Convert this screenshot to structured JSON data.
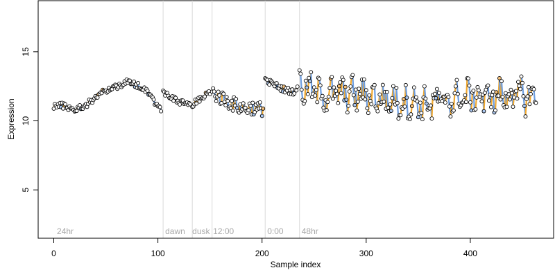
{
  "chart_data": {
    "type": "scatter",
    "title": "",
    "xlabel": "Sample index",
    "ylabel": "Expression",
    "xlim": [
      -15,
      480
    ],
    "ylim": [
      1.5,
      18.7
    ],
    "xticks": [
      0,
      100,
      200,
      300,
      400
    ],
    "yticks": [
      5,
      10,
      15
    ],
    "grid": false,
    "legend": "none",
    "colors": {
      "point_stroke": "#000000",
      "point_fill_default": "#ffffff",
      "point_fill_orange": "#f5c07a",
      "point_fill_blue": "#aac6ee",
      "line_orange": "#f0a830",
      "line_blue": "#6e9ee0",
      "line_gray": "#999999",
      "divider": "#d9d9d9",
      "phase_label": "#a8a8a8"
    },
    "phase_dividers": [
      105,
      133,
      152,
      203,
      236
    ],
    "phase_labels": [
      {
        "x": 3,
        "text": "24hr"
      },
      {
        "x": 107,
        "text": "dawn"
      },
      {
        "x": 133,
        "text": "dusk"
      },
      {
        "x": 153,
        "text": "12:00"
      },
      {
        "x": 205,
        "text": "0:00"
      },
      {
        "x": 238,
        "text": "48hr"
      }
    ],
    "segments": [
      {
        "start": 0,
        "end": 103,
        "keys": [
          [
            0,
            11.1
          ],
          [
            10,
            11.1
          ],
          [
            20,
            10.8
          ],
          [
            30,
            11.1
          ],
          [
            40,
            11.7
          ],
          [
            50,
            12.2
          ],
          [
            60,
            12.5
          ],
          [
            70,
            12.8
          ],
          [
            80,
            12.6
          ],
          [
            90,
            12.2
          ],
          [
            95,
            11.6
          ],
          [
            100,
            11.0
          ],
          [
            103,
            10.9
          ]
        ]
      },
      {
        "start": 105,
        "end": 131,
        "keys": [
          [
            105,
            12.0
          ],
          [
            110,
            11.9
          ],
          [
            115,
            11.6
          ],
          [
            120,
            11.3
          ],
          [
            125,
            11.3
          ],
          [
            131,
            11.2
          ]
        ]
      },
      {
        "start": 133,
        "end": 150,
        "keys": [
          [
            133,
            11.2
          ],
          [
            140,
            11.5
          ],
          [
            145,
            11.8
          ],
          [
            150,
            12.0
          ]
        ]
      },
      {
        "start": 152,
        "end": 201,
        "keys": [
          [
            152,
            12.1
          ],
          [
            160,
            11.7
          ],
          [
            170,
            11.3
          ],
          [
            178,
            11.0
          ],
          [
            185,
            10.9
          ],
          [
            190,
            11.0
          ],
          [
            195,
            10.8
          ],
          [
            201,
            10.9
          ]
        ]
      },
      {
        "start": 203,
        "end": 234,
        "keys": [
          [
            203,
            12.9
          ],
          [
            210,
            12.7
          ],
          [
            220,
            12.3
          ],
          [
            230,
            12.1
          ],
          [
            234,
            12.3
          ]
        ]
      },
      {
        "start": 236,
        "end": 463,
        "keys": [
          [
            236,
            12.5
          ],
          [
            260,
            11.9
          ],
          [
            280,
            12.0
          ],
          [
            300,
            11.8
          ],
          [
            320,
            11.5
          ],
          [
            340,
            11.3
          ],
          [
            360,
            11.2
          ],
          [
            380,
            11.5
          ],
          [
            400,
            11.8
          ],
          [
            420,
            11.7
          ],
          [
            440,
            11.9
          ],
          [
            463,
            11.7
          ]
        ]
      }
    ],
    "series": [
      {
        "kind": "observed",
        "n_points": 463,
        "x_range": [
          0,
          463
        ]
      }
    ]
  }
}
